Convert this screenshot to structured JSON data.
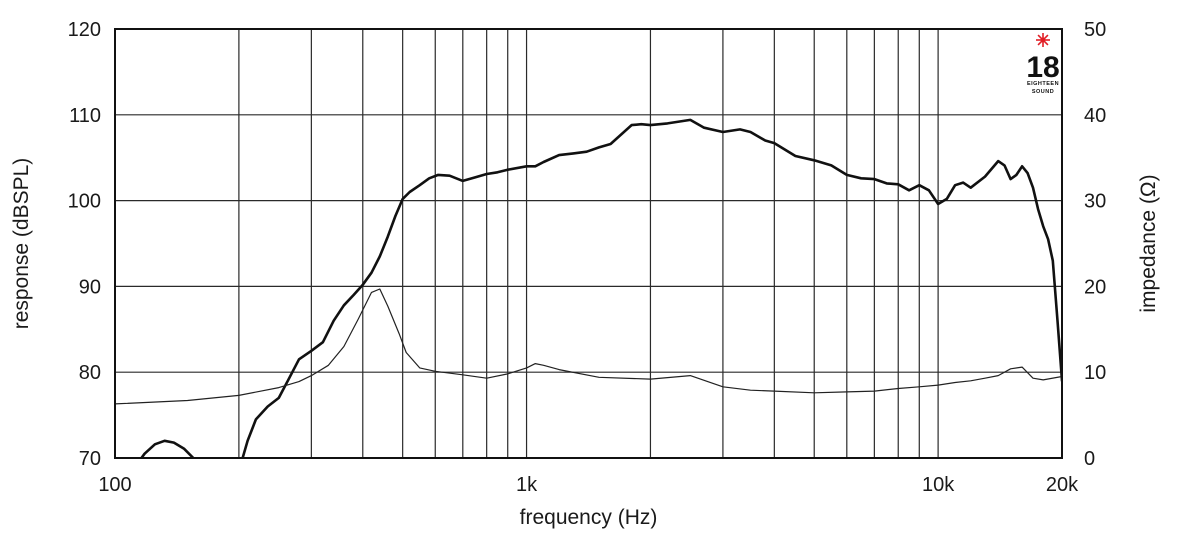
{
  "chart_data": {
    "type": "line",
    "xlabel": "frequency (Hz)",
    "ylabel": "response (dBSPL)",
    "y2label": "impedance (Ω)",
    "xscale": "log",
    "xlim": [
      100,
      20000
    ],
    "ylim": [
      70,
      120
    ],
    "y2lim": [
      0,
      50
    ],
    "grid": true,
    "x_ticks": [
      {
        "value": 100,
        "label": "100"
      },
      {
        "value": 1000,
        "label": "1k"
      },
      {
        "value": 10000,
        "label": "10k"
      },
      {
        "value": 20000,
        "label": "20k"
      }
    ],
    "x_gridlines": [
      200,
      300,
      400,
      500,
      600,
      700,
      800,
      900,
      1000,
      2000,
      3000,
      4000,
      5000,
      6000,
      7000,
      8000,
      9000,
      10000
    ],
    "y_ticks": [
      {
        "value": 70,
        "label": "70"
      },
      {
        "value": 80,
        "label": "80"
      },
      {
        "value": 90,
        "label": "90"
      },
      {
        "value": 100,
        "label": "100"
      },
      {
        "value": 110,
        "label": "110"
      },
      {
        "value": 120,
        "label": "120"
      }
    ],
    "y2_ticks": [
      {
        "value": 0,
        "label": "0"
      },
      {
        "value": 10,
        "label": "10"
      },
      {
        "value": 20,
        "label": "20"
      },
      {
        "value": 30,
        "label": "30"
      },
      {
        "value": 40,
        "label": "40"
      },
      {
        "value": 50,
        "label": "50"
      }
    ],
    "series": [
      {
        "axis": "left",
        "style": "thick",
        "x": [
          110,
          118,
          125,
          132,
          139,
          147,
          155,
          163,
          170,
          200,
          210,
          220,
          235,
          250,
          263,
          280,
          300,
          320,
          340,
          360,
          380,
          400,
          420,
          440,
          460,
          480,
          500,
          520,
          550,
          580,
          610,
          650,
          700,
          750,
          800,
          850,
          900,
          1000,
          1050,
          1100,
          1200,
          1300,
          1400,
          1500,
          1600,
          1800,
          1900,
          2000,
          2200,
          2500,
          2700,
          3000,
          3300,
          3500,
          3800,
          4000,
          4500,
          5000,
          5500,
          6000,
          6500,
          7000,
          7500,
          8000,
          8500,
          9000,
          9500,
          10000,
          10500,
          11000,
          11500,
          12000,
          13000,
          14000,
          14500,
          15000,
          15500,
          16000,
          16500,
          17000,
          17500,
          18000,
          18500,
          19000,
          19500,
          20000
        ],
        "values": [
          68.5,
          70.5,
          71.6,
          72.0,
          71.8,
          71.1,
          70.0,
          68.5,
          67.0,
          68.5,
          72.0,
          74.5,
          76.0,
          77.0,
          79.0,
          81.5,
          82.5,
          83.5,
          86.0,
          87.8,
          89.0,
          90.2,
          91.6,
          93.5,
          95.8,
          98.2,
          100.2,
          101.0,
          101.8,
          102.6,
          103.0,
          102.9,
          102.3,
          102.7,
          103.1,
          103.3,
          103.6,
          104.0,
          104.0,
          104.5,
          105.3,
          105.5,
          105.7,
          106.2,
          106.6,
          108.8,
          108.9,
          108.8,
          109.0,
          109.4,
          108.5,
          108.0,
          108.3,
          108.0,
          107.0,
          106.7,
          105.2,
          104.7,
          104.1,
          103.0,
          102.6,
          102.5,
          102.0,
          101.9,
          101.2,
          101.8,
          101.2,
          99.6,
          100.2,
          101.8,
          102.1,
          101.5,
          102.8,
          104.6,
          104.1,
          102.5,
          103.0,
          104.0,
          103.2,
          101.5,
          99.0,
          97.0,
          95.5,
          93.0,
          86.0,
          79.0
        ]
      },
      {
        "axis": "right",
        "style": "thin",
        "x": [
          100,
          150,
          200,
          250,
          280,
          300,
          330,
          360,
          390,
          420,
          440,
          460,
          490,
          510,
          550,
          600,
          700,
          800,
          900,
          1000,
          1050,
          1100,
          1200,
          1500,
          2000,
          2500,
          3000,
          3500,
          4000,
          5000,
          6000,
          7000,
          8000,
          9000,
          10000,
          11000,
          12000,
          13000,
          14000,
          15000,
          16000,
          17000,
          18000,
          20000
        ],
        "values": [
          6.3,
          6.7,
          7.3,
          8.2,
          8.9,
          9.6,
          10.8,
          13.0,
          16.2,
          19.3,
          19.7,
          17.7,
          14.5,
          12.3,
          10.5,
          10.1,
          9.7,
          9.3,
          9.8,
          10.5,
          11.0,
          10.8,
          10.3,
          9.4,
          9.2,
          9.6,
          8.3,
          7.9,
          7.8,
          7.6,
          7.7,
          7.8,
          8.1,
          8.3,
          8.5,
          8.8,
          9.0,
          9.3,
          9.6,
          10.4,
          10.6,
          9.3,
          9.1,
          9.5
        ]
      }
    ],
    "logo": {
      "number": "18",
      "small_top": "EIGHTEEN",
      "small_bottom": "SOUND",
      "accent_color": "#e11f26"
    }
  }
}
